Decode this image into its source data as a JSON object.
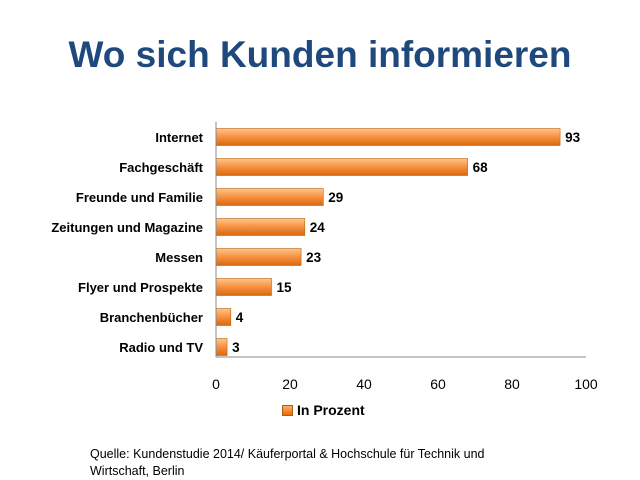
{
  "title": "Wo sich Kunden informieren",
  "source": "Quelle: Kundenstudie 2014/ Käuferportal & Hochschule für Technik und Wirtschaft, Berlin",
  "chart_data": {
    "type": "bar",
    "orientation": "horizontal",
    "title": "Wo sich Kunden informieren",
    "categories": [
      "Internet",
      "Fachgeschäft",
      "Freunde und Familie",
      "Zeitungen und Magazine",
      "Messen",
      "Flyer und Prospekte",
      "Branchenbücher",
      "Radio und TV"
    ],
    "series": [
      {
        "name": "In Prozent",
        "values": [
          93,
          68,
          29,
          24,
          23,
          15,
          4,
          3
        ],
        "color": "#f79646"
      }
    ],
    "xlim": [
      0,
      100
    ],
    "xticks": [
      0,
      20,
      40,
      60,
      80,
      100
    ],
    "grid": false,
    "data_labels": true,
    "legend_position": "bottom"
  }
}
